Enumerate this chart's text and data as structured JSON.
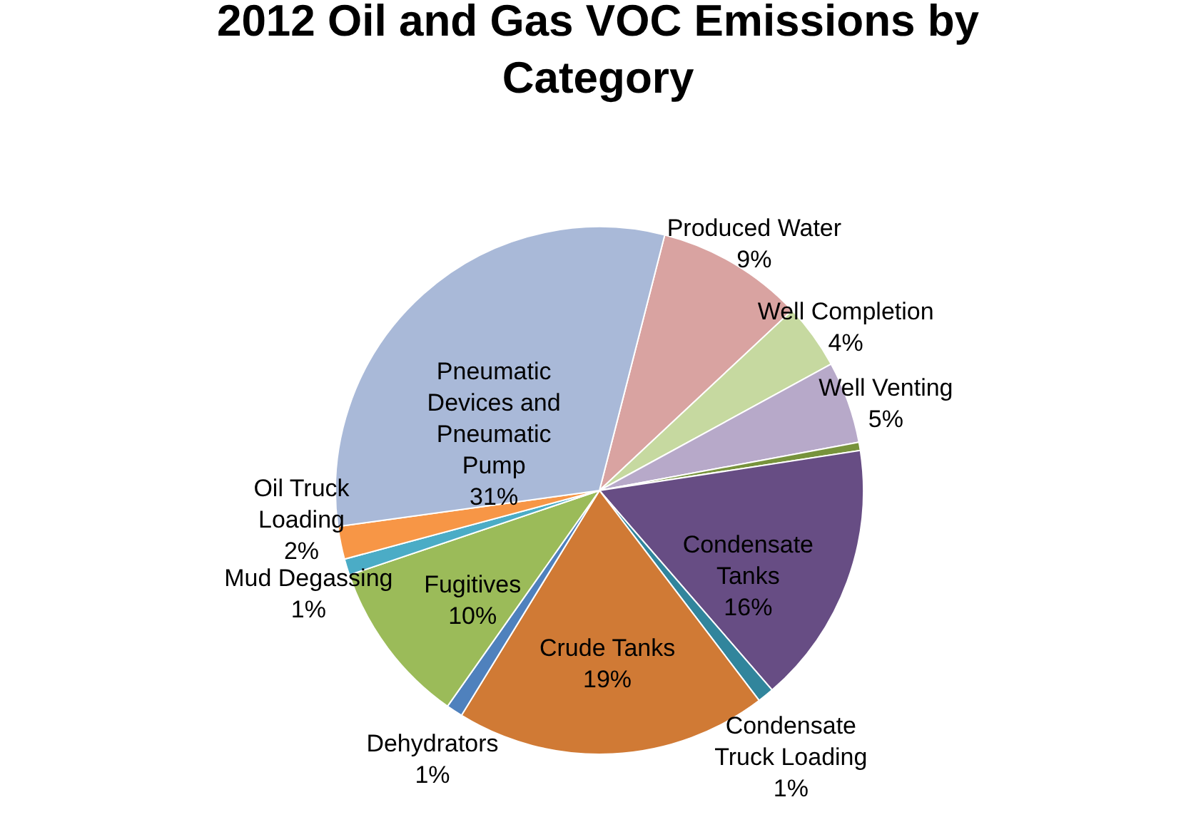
{
  "chart_data": {
    "type": "pie",
    "title": "2012 Oil and Gas VOC Emissions by Category",
    "categories": [
      "Produced Water",
      "Well Completion",
      "Well Venting",
      null,
      "Condensate Tanks",
      "Condensate Truck Loading",
      "Crude Tanks",
      "Dehydrators",
      "Fugitives",
      "Mud Degassing",
      "Oil Truck Loading",
      "Pneumatic Devices and Pneumatic Pump"
    ],
    "values": [
      9,
      4,
      5,
      0.5,
      16,
      1,
      19,
      1,
      10,
      1,
      2,
      31
    ],
    "value_labels": [
      "9%",
      "4%",
      "5%",
      null,
      "16%",
      "1%",
      "19%",
      "1%",
      "10%",
      "1%",
      "2%",
      "31%"
    ],
    "colors": [
      "#d9a3a1",
      "#c6d9a0",
      "#b7a9c9",
      "#77933c",
      "#674d84",
      "#31859c",
      "#d07a35",
      "#4f81bd",
      "#9bbb59",
      "#4bacc6",
      "#f79646",
      "#a9b9d8"
    ]
  }
}
